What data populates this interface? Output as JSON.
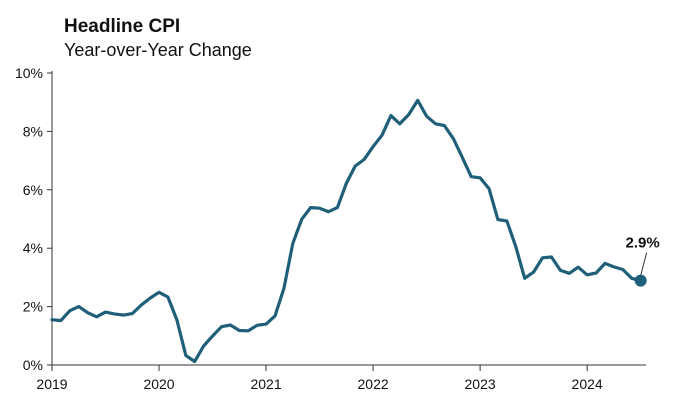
{
  "chart_data": {
    "type": "line",
    "title": "Headline CPI",
    "subtitle": "Year-over-Year Change",
    "xlabel": "",
    "ylabel": "",
    "xlim": [
      2019.0,
      2024.55
    ],
    "ylim": [
      0,
      10
    ],
    "y_ticks": [
      0,
      2,
      4,
      6,
      8,
      10
    ],
    "y_tick_labels": [
      "0%",
      "2%",
      "4%",
      "6%",
      "8%",
      "10%"
    ],
    "x_ticks": [
      2019,
      2020,
      2021,
      2022,
      2023,
      2024
    ],
    "x_tick_labels": [
      "2019",
      "2020",
      "2021",
      "2022",
      "2023",
      "2024"
    ],
    "grid": "none",
    "colors": {
      "line": "#1f5f7a",
      "axis": "#333333"
    },
    "series": [
      {
        "x": [
          "2019-01",
          "2019-02",
          "2019-03",
          "2019-04",
          "2019-05",
          "2019-06",
          "2019-07",
          "2019-08",
          "2019-09",
          "2019-10",
          "2019-11",
          "2019-12",
          "2020-01",
          "2020-02",
          "2020-03",
          "2020-04",
          "2020-05",
          "2020-06",
          "2020-07",
          "2020-08",
          "2020-09",
          "2020-10",
          "2020-11",
          "2020-12",
          "2021-01",
          "2021-02",
          "2021-03",
          "2021-04",
          "2021-05",
          "2021-06",
          "2021-07",
          "2021-08",
          "2021-09",
          "2021-10",
          "2021-11",
          "2021-12",
          "2022-01",
          "2022-02",
          "2022-03",
          "2022-04",
          "2022-05",
          "2022-06",
          "2022-07",
          "2022-08",
          "2022-09",
          "2022-10",
          "2022-11",
          "2022-12",
          "2023-01",
          "2023-02",
          "2023-03",
          "2023-04",
          "2023-05",
          "2023-06",
          "2023-07",
          "2023-08",
          "2023-09",
          "2023-10",
          "2023-11",
          "2023-12",
          "2024-01",
          "2024-02",
          "2024-03",
          "2024-04",
          "2024-05",
          "2024-06",
          "2024-07"
        ],
        "values": [
          1.55,
          1.52,
          1.86,
          2.0,
          1.79,
          1.65,
          1.81,
          1.75,
          1.71,
          1.76,
          2.05,
          2.29,
          2.49,
          2.33,
          1.54,
          0.33,
          0.12,
          0.65,
          0.99,
          1.31,
          1.37,
          1.18,
          1.17,
          1.36,
          1.4,
          1.68,
          2.62,
          4.16,
          4.99,
          5.39,
          5.37,
          5.25,
          5.39,
          6.22,
          6.81,
          7.04,
          7.48,
          7.87,
          8.54,
          8.26,
          8.58,
          9.06,
          8.52,
          8.26,
          8.2,
          7.75,
          7.11,
          6.45,
          6.41,
          6.04,
          4.98,
          4.93,
          4.05,
          2.97,
          3.18,
          3.67,
          3.7,
          3.24,
          3.14,
          3.35,
          3.09,
          3.15,
          3.48,
          3.36,
          3.27,
          2.97,
          2.89
        ]
      }
    ],
    "annotations": [
      {
        "x": "2024-07",
        "y": 2.89,
        "text": "2.9%"
      }
    ]
  }
}
